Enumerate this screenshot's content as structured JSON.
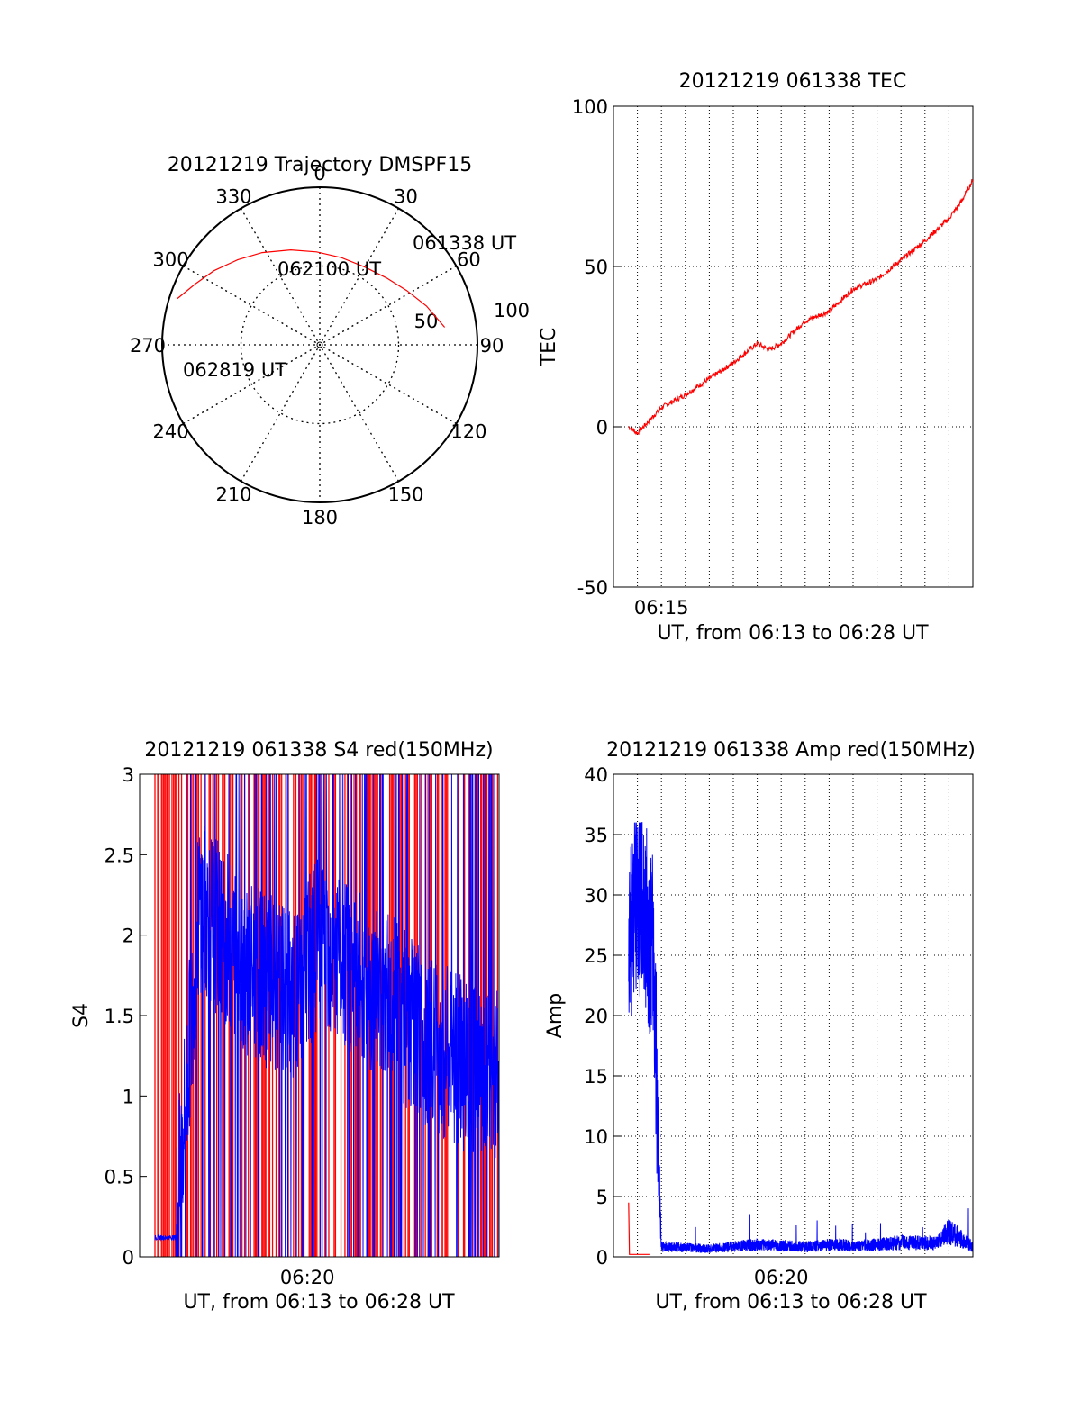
{
  "chart_data": [
    {
      "type": "scatter",
      "panel": "polar-trajectory",
      "title": "20121219 Trajectory DMSPF15",
      "azimuth_labels": [
        "0",
        "30",
        "60",
        "90",
        "120",
        "150",
        "180",
        "210",
        "240",
        "270",
        "300",
        "330"
      ],
      "radius_labels": [
        "50",
        "100"
      ],
      "grid": true,
      "series": [
        {
          "color": "#ff0000",
          "points": [
            {
              "azimuth": 82,
              "zenith": 80
            },
            {
              "azimuth": 70,
              "zenith": 72
            },
            {
              "azimuth": 58,
              "zenith": 65
            },
            {
              "azimuth": 45,
              "zenith": 60
            },
            {
              "azimuth": 30,
              "zenith": 57
            },
            {
              "azimuth": 14,
              "zenith": 57
            },
            {
              "azimuth": -2,
              "zenith": 59
            },
            {
              "azimuth": -17,
              "zenith": 63
            },
            {
              "azimuth": -32,
              "zenith": 69
            },
            {
              "azimuth": -44,
              "zenith": 75
            },
            {
              "azimuth": -55,
              "zenith": 82
            },
            {
              "azimuth": -64,
              "zenith": 88
            },
            {
              "azimuth": -72,
              "zenith": 95
            }
          ]
        }
      ],
      "annotations": [
        "061338 UT",
        "062100 UT",
        "062819 UT"
      ]
    },
    {
      "type": "line",
      "panel": "tec",
      "title": "20121219 061338 TEC",
      "xlabel": "UT, from 06:13 to 06:28 UT",
      "ylabel": "TEC",
      "xlim": [
        "06:13",
        "06:28"
      ],
      "ylim": [
        -50,
        100
      ],
      "xticks": [
        "06:15"
      ],
      "yticks": [
        "-50",
        "0",
        "50",
        "100"
      ],
      "grid": true,
      "series": [
        {
          "color": "#ff0000",
          "x": [
            "06:13:38",
            "06:14:00",
            "06:15:00",
            "06:16:00",
            "06:17:00",
            "06:18:00",
            "06:19:00",
            "06:19:30",
            "06:20:00",
            "06:21:00",
            "06:22:00",
            "06:23:00",
            "06:24:00",
            "06:25:00",
            "06:26:00",
            "06:27:00",
            "06:27:30",
            "06:28:00"
          ],
          "y": [
            0,
            -2,
            6,
            10,
            15,
            20,
            26,
            24,
            26,
            33,
            36,
            43,
            46,
            52,
            58,
            65,
            70,
            77
          ]
        }
      ]
    },
    {
      "type": "line",
      "panel": "s4",
      "title": "20121219 061338 S4 red(150MHz)",
      "xlabel": "UT, from 06:13 to 06:28 UT",
      "ylabel": "S4",
      "xlim": [
        "06:13",
        "06:28"
      ],
      "ylim": [
        0,
        3
      ],
      "xticks": [
        "06:20"
      ],
      "yticks": [
        "0",
        "0.5",
        "1",
        "1.5",
        "2",
        "2.5",
        "3"
      ],
      "grid": false,
      "series": [
        {
          "color": "#ff0000",
          "description": "dense vertical spikes spanning 0 to 3 across the interval"
        },
        {
          "color": "#0000ff",
          "x": [
            "06:13:38",
            "06:14:30",
            "06:15:30",
            "06:16:30",
            "06:17:30",
            "06:18:30",
            "06:19:30",
            "06:20:30",
            "06:21:30",
            "06:22:30",
            "06:23:30",
            "06:24:30",
            "06:25:30",
            "06:26:30",
            "06:27:30",
            "06:28:00"
          ],
          "y": [
            0.12,
            0.12,
            2.2,
            2.0,
            1.8,
            1.7,
            1.6,
            2.0,
            1.8,
            1.7,
            1.6,
            1.4,
            1.3,
            1.2,
            1.15,
            1.1
          ]
        }
      ]
    },
    {
      "type": "line",
      "panel": "amp",
      "title": "20121219 061338 Amp red(150MHz)",
      "xlabel": "UT, from 06:13 to 06:28 UT",
      "ylabel": "Amp",
      "xlim": [
        "06:13",
        "06:28"
      ],
      "ylim": [
        0,
        40
      ],
      "xticks": [
        "06:20"
      ],
      "yticks": [
        "0",
        "5",
        "10",
        "15",
        "20",
        "25",
        "30",
        "35",
        "40"
      ],
      "grid": true,
      "series": [
        {
          "color": "#ff0000",
          "x": [
            "06:13:38",
            "06:13:40",
            "06:14:00",
            "06:14:30"
          ],
          "y": [
            4.5,
            0.2,
            0.2,
            0.2
          ]
        },
        {
          "color": "#0000ff",
          "x": [
            "06:13:38",
            "06:14:00",
            "06:14:20",
            "06:14:40",
            "06:15:00",
            "06:17:00",
            "06:19:00",
            "06:21:00",
            "06:22:30",
            "06:23:00",
            "06:25:00",
            "06:26:30",
            "06:27:00",
            "06:28:00"
          ],
          "y": [
            27,
            30,
            28,
            25,
            1.0,
            0.8,
            1.2,
            1.0,
            1.2,
            1.0,
            1.4,
            1.3,
            2.5,
            1.0
          ]
        }
      ]
    }
  ]
}
